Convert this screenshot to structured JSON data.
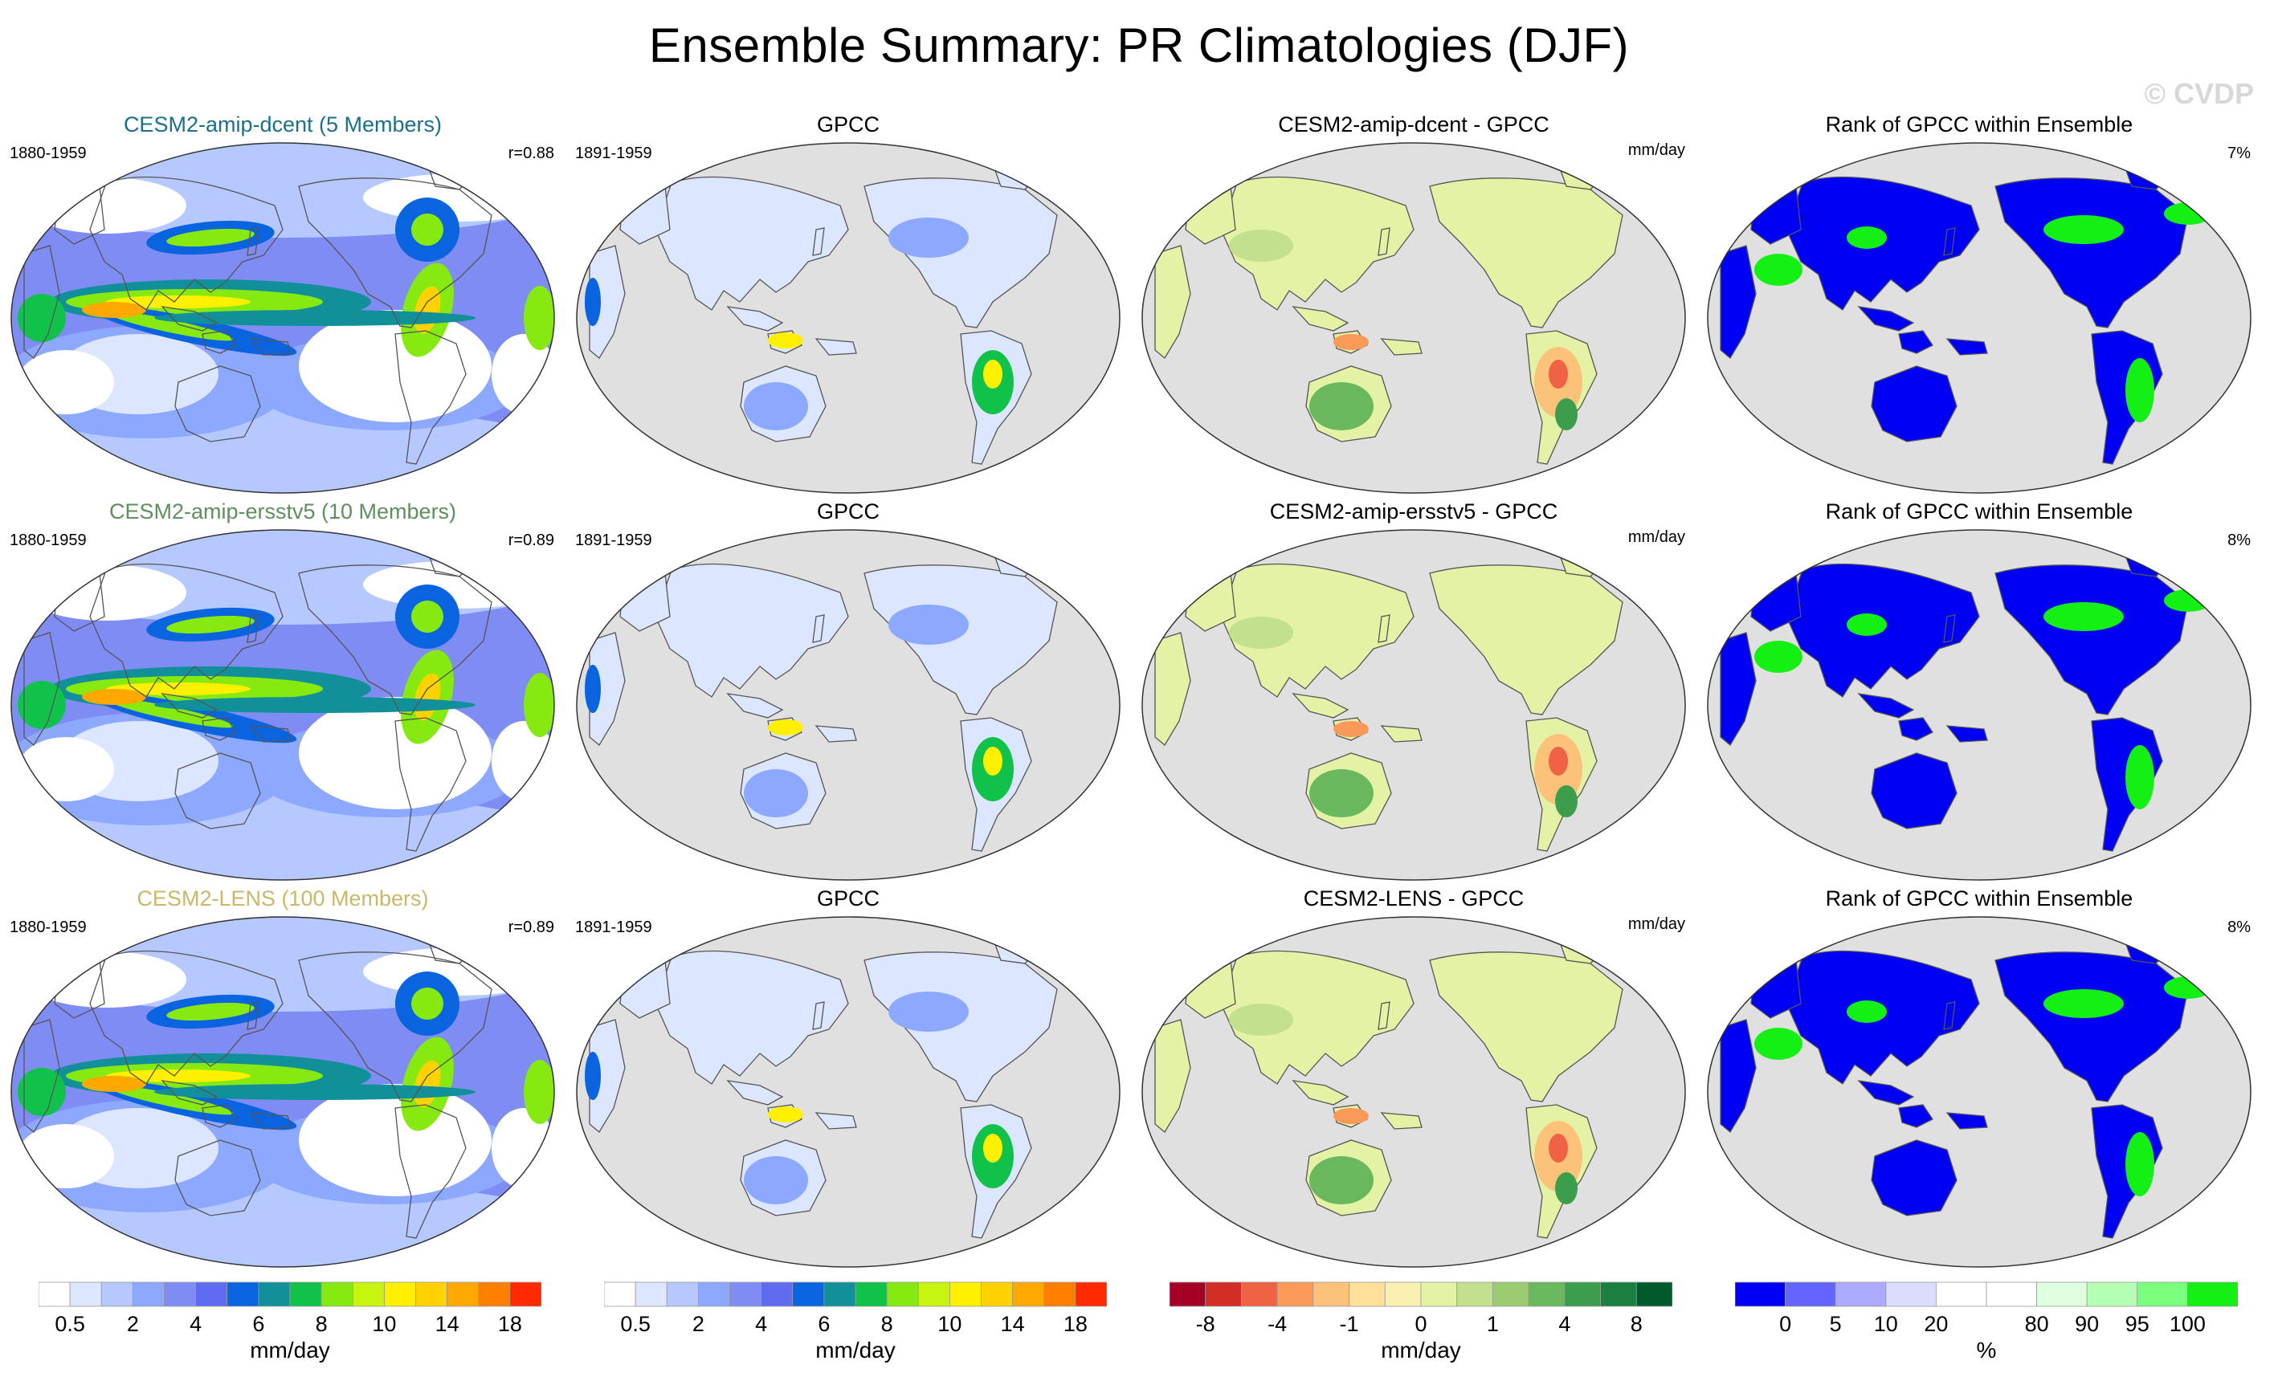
{
  "title": "Ensemble Summary: PR Climatologies (DJF)",
  "watermark": "© CVDP",
  "rows": [
    {
      "model": {
        "title": "CESM2-amip-dcent (5 Members)",
        "title_color": "#1b6f8a",
        "period": "1880-1959",
        "corr": "r=0.88"
      },
      "obs": {
        "title": "GPCC",
        "period": "1891-1959"
      },
      "diff": {
        "title": "CESM2-amip-dcent - GPCC",
        "units": "mm/day"
      },
      "rank": {
        "title": "Rank of GPCC within Ensemble",
        "pct": "7%"
      }
    },
    {
      "model": {
        "title": "CESM2-amip-ersstv5 (10 Members)",
        "title_color": "#5f8f5f",
        "period": "1880-1959",
        "corr": "r=0.89"
      },
      "obs": {
        "title": "GPCC",
        "period": "1891-1959"
      },
      "diff": {
        "title": "CESM2-amip-ersstv5 - GPCC",
        "units": "mm/day"
      },
      "rank": {
        "title": "Rank of GPCC within Ensemble",
        "pct": "8%"
      }
    },
    {
      "model": {
        "title": "CESM2-LENS (100 Members)",
        "title_color": "#c9b86a",
        "period": "1880-1959",
        "corr": "r=0.89"
      },
      "obs": {
        "title": "GPCC",
        "period": "1891-1959"
      },
      "diff": {
        "title": "CESM2-LENS - GPCC",
        "units": "mm/day"
      },
      "rank": {
        "title": "Rank of GPCC within Ensemble",
        "pct": "8%"
      }
    }
  ],
  "colorbars": [
    {
      "name": "pr",
      "units": "mm/day",
      "colors": [
        "#ffffff",
        "#dde6ff",
        "#b5c8ff",
        "#8ca8ff",
        "#7f8cf3",
        "#5f6cf0",
        "#0a64e0",
        "#11909a",
        "#11c24a",
        "#86ea10",
        "#c8f510",
        "#fff000",
        "#ffd200",
        "#ffa800",
        "#ff7e00",
        "#ff2a00"
      ],
      "ticks": [
        {
          "label": "0.5",
          "index": 1
        },
        {
          "label": "2",
          "index": 3
        },
        {
          "label": "4",
          "index": 5
        },
        {
          "label": "6",
          "index": 7
        },
        {
          "label": "8",
          "index": 9
        },
        {
          "label": "10",
          "index": 11
        },
        {
          "label": "14",
          "index": 13
        },
        {
          "label": "18",
          "index": 15
        }
      ]
    },
    {
      "name": "pr-obs",
      "units": "mm/day",
      "colors": [
        "#ffffff",
        "#dde6ff",
        "#b5c8ff",
        "#8ca8ff",
        "#7f8cf3",
        "#5f6cf0",
        "#0a64e0",
        "#11909a",
        "#11c24a",
        "#86ea10",
        "#c8f510",
        "#fff000",
        "#ffd200",
        "#ffa800",
        "#ff7e00",
        "#ff2a00"
      ],
      "ticks": [
        {
          "label": "0.5",
          "index": 1
        },
        {
          "label": "2",
          "index": 3
        },
        {
          "label": "4",
          "index": 5
        },
        {
          "label": "6",
          "index": 7
        },
        {
          "label": "8",
          "index": 9
        },
        {
          "label": "10",
          "index": 11
        },
        {
          "label": "14",
          "index": 13
        },
        {
          "label": "18",
          "index": 15
        }
      ]
    },
    {
      "name": "diff",
      "units": "mm/day",
      "colors": [
        "#a50026",
        "#d22d26",
        "#ef6244",
        "#f99a59",
        "#fdc27a",
        "#fee09a",
        "#f7f0b0",
        "#e4f2a6",
        "#c2e08e",
        "#9ccc72",
        "#6ab85e",
        "#3c9e4c",
        "#1a8040",
        "#005a2c"
      ],
      "ticks": [
        {
          "label": "-8",
          "index": 1
        },
        {
          "label": "-4",
          "index": 3
        },
        {
          "label": "-1",
          "index": 5
        },
        {
          "label": "0",
          "index": 7
        },
        {
          "label": "1",
          "index": 9
        },
        {
          "label": "4",
          "index": 11
        },
        {
          "label": "8",
          "index": 13
        }
      ]
    },
    {
      "name": "rank",
      "units": "%",
      "colors": [
        "#0000f4",
        "#6464ff",
        "#aaaaff",
        "#dcdcff",
        "#ffffff",
        "#ffffff",
        "#e0ffe0",
        "#b4ffb4",
        "#7cff7c",
        "#14f014"
      ],
      "ticks": [
        {
          "label": "0",
          "index": 1
        },
        {
          "label": "5",
          "index": 2
        },
        {
          "label": "10",
          "index": 3
        },
        {
          "label": "20",
          "index": 4
        },
        {
          "label": "80",
          "index": 6
        },
        {
          "label": "90",
          "index": 7
        },
        {
          "label": "95",
          "index": 8
        },
        {
          "label": "100",
          "index": 9
        }
      ]
    }
  ]
}
